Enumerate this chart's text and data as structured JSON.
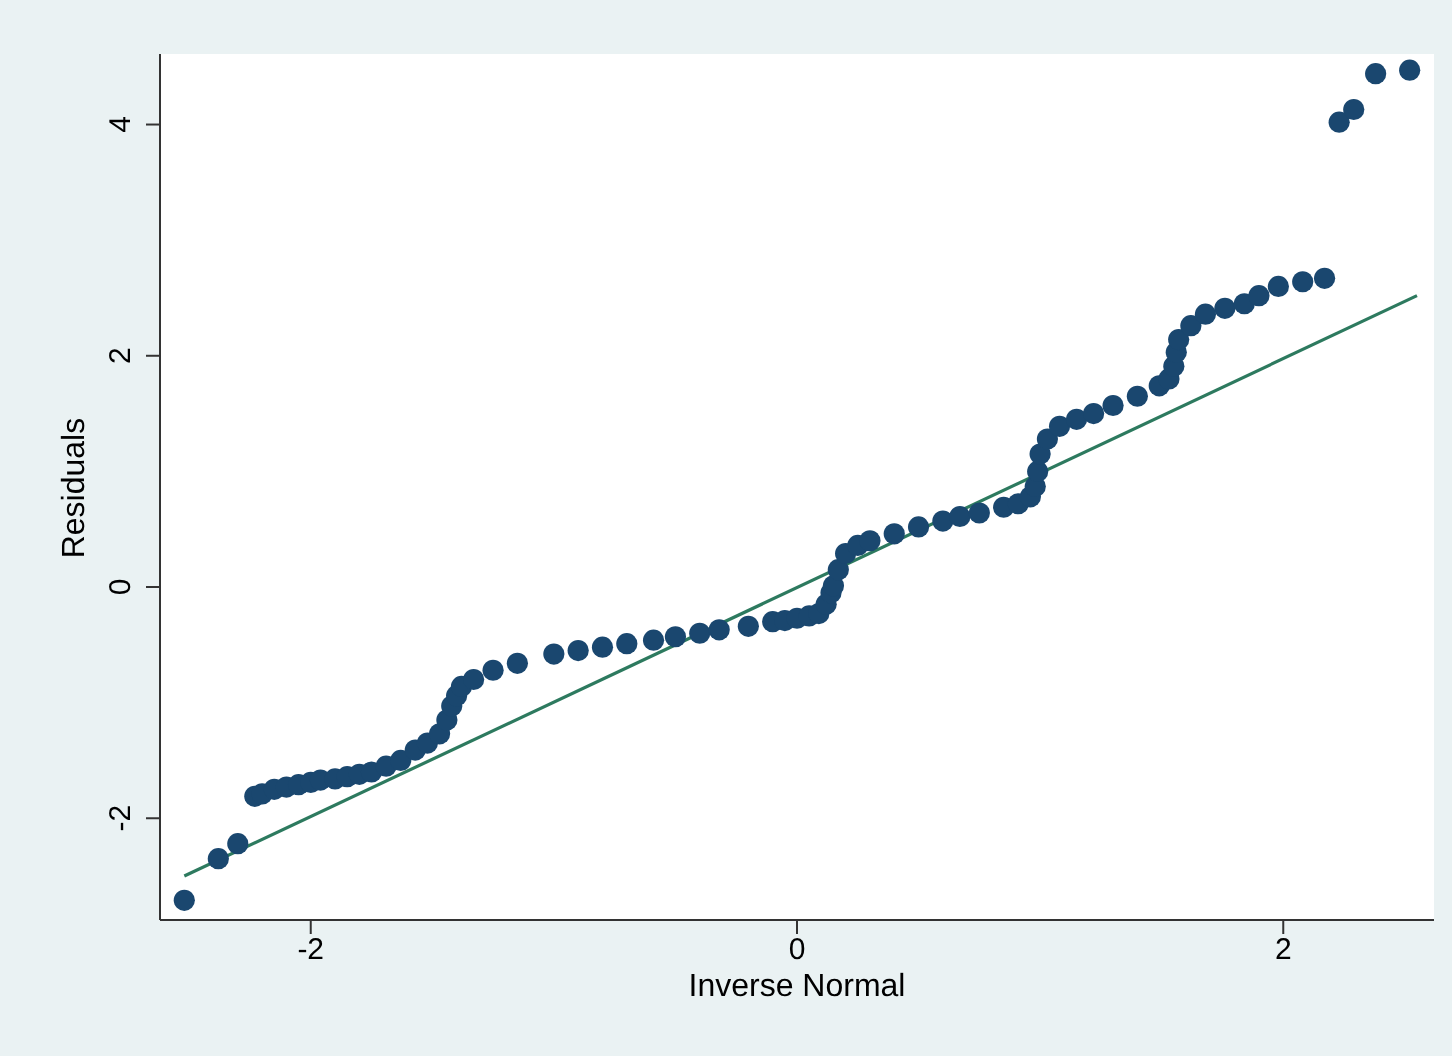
{
  "chart_data": {
    "type": "scatter",
    "xlabel": "Inverse Normal",
    "ylabel": "Residuals",
    "xlim": [
      -2.62,
      2.62
    ],
    "ylim": [
      -2.88,
      4.61
    ],
    "xticks": [
      -2,
      0,
      2
    ],
    "yticks": [
      -2,
      0,
      2,
      4
    ],
    "grid": false,
    "legend": false,
    "marker": "circle",
    "series": [
      {
        "color": "#1a476f",
        "x": [
          -2.52,
          -2.38,
          -2.3,
          -2.23,
          -2.2,
          -2.15,
          -2.1,
          -2.05,
          -2.0,
          -1.96,
          -1.9,
          -1.85,
          -1.8,
          -1.75,
          -1.69,
          -1.63,
          -1.57,
          -1.52,
          -1.47,
          -1.44,
          -1.42,
          -1.4,
          -1.38,
          -1.33,
          -1.25,
          -1.15,
          -1.0,
          -0.9,
          -0.8,
          -0.7,
          -0.59,
          -0.5,
          -0.4,
          -0.32,
          -0.2,
          -0.1,
          -0.05,
          0.0,
          0.05,
          0.09,
          0.12,
          0.14,
          0.15,
          0.17,
          0.2,
          0.25,
          0.3,
          0.4,
          0.5,
          0.6,
          0.67,
          0.75,
          0.85,
          0.91,
          0.96,
          0.98,
          0.99,
          1.0,
          1.03,
          1.08,
          1.15,
          1.22,
          1.3,
          1.4,
          1.49,
          1.53,
          1.55,
          1.56,
          1.57,
          1.62,
          1.68,
          1.76,
          1.84,
          1.9,
          1.98,
          2.08,
          2.17,
          2.23,
          2.29,
          2.38,
          2.52
        ],
        "values": [
          -2.71,
          -2.35,
          -2.22,
          -1.81,
          -1.79,
          -1.75,
          -1.73,
          -1.71,
          -1.69,
          -1.67,
          -1.66,
          -1.64,
          -1.62,
          -1.6,
          -1.55,
          -1.5,
          -1.41,
          -1.35,
          -1.27,
          -1.15,
          -1.03,
          -0.94,
          -0.86,
          -0.8,
          -0.72,
          -0.66,
          -0.58,
          -0.55,
          -0.52,
          -0.49,
          -0.46,
          -0.43,
          -0.4,
          -0.37,
          -0.34,
          -0.3,
          -0.29,
          -0.27,
          -0.25,
          -0.23,
          -0.15,
          -0.05,
          0.01,
          0.15,
          0.29,
          0.36,
          0.4,
          0.46,
          0.52,
          0.57,
          0.61,
          0.64,
          0.69,
          0.72,
          0.78,
          0.87,
          1.0,
          1.15,
          1.28,
          1.39,
          1.45,
          1.5,
          1.57,
          1.65,
          1.74,
          1.8,
          1.91,
          2.03,
          2.14,
          2.26,
          2.36,
          2.41,
          2.45,
          2.52,
          2.6,
          2.64,
          2.67,
          4.02,
          4.13,
          4.44,
          4.47
        ]
      },
      {
        "type": "line",
        "color": "#2d7a5f",
        "line_style": "solid",
        "marker": "none",
        "x": [
          -2.52,
          2.55
        ],
        "values": [
          -2.5,
          2.52
        ]
      }
    ]
  }
}
